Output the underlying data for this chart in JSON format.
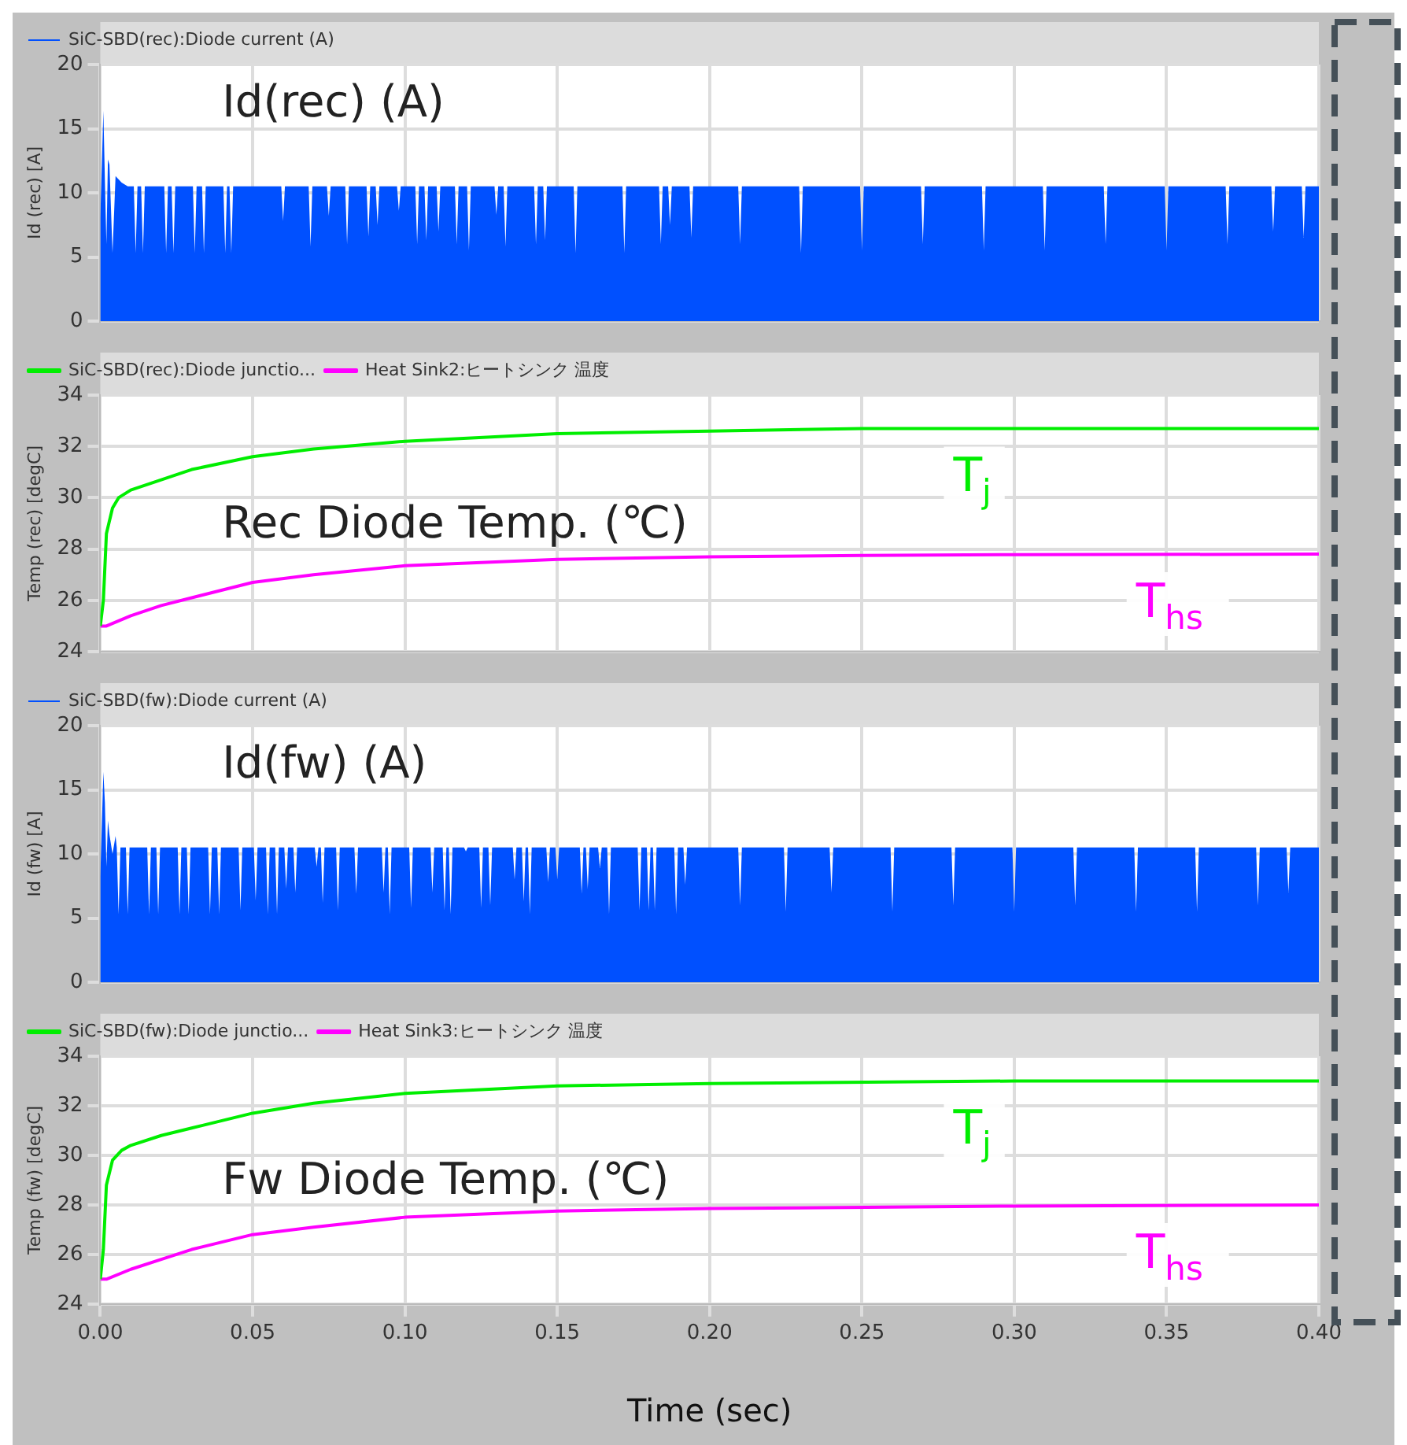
{
  "chart_data": [
    {
      "type": "area",
      "title": "Id(rec) (A)",
      "ylabel": "Id (rec) [A]",
      "legend": "top left",
      "grid": true,
      "tick_labels": "y",
      "xlim": [
        0,
        0.4
      ],
      "xticks": [
        0,
        0.05,
        0.1,
        0.15,
        0.2,
        0.25,
        0.3,
        0.35,
        0.4
      ],
      "ylim": [
        0,
        20
      ],
      "yticks": [
        0,
        5,
        10,
        15,
        20
      ],
      "series": [
        {
          "name": "SiC-SBD(rec):Diode current (A)",
          "color": "#0050ff",
          "x": [
            0,
            0.001,
            0.0015,
            0.002,
            0.0025,
            0.003,
            0.004,
            0.005,
            0.007,
            0.009,
            0.011,
            0.0116,
            0.0122,
            0.0134,
            0.014,
            0.0146,
            0.021,
            0.0216,
            0.0222,
            0.0234,
            0.024,
            0.0246,
            0.0304,
            0.031,
            0.0316,
            0.0334,
            0.034,
            0.0346,
            0.0404,
            0.041,
            0.0416,
            0.0424,
            0.043,
            0.0436,
            0.0594,
            0.06,
            0.0606,
            0.0684,
            0.069,
            0.0696,
            0.0744,
            0.075,
            0.0756,
            0.0804,
            0.081,
            0.0816,
            0.0874,
            0.088,
            0.0886,
            0.0904,
            0.091,
            0.0916,
            0.0974,
            0.098,
            0.0986,
            0.1034,
            0.104,
            0.1046,
            0.1064,
            0.107,
            0.1076,
            0.1104,
            0.111,
            0.1116,
            0.1164,
            0.117,
            0.1176,
            0.1204,
            0.121,
            0.1216,
            0.1294,
            0.13,
            0.1306,
            0.1324,
            0.133,
            0.1336,
            0.1424,
            0.143,
            0.1436,
            0.1454,
            0.146,
            0.1466,
            0.1554,
            0.156,
            0.1566,
            0.1714,
            0.172,
            0.1726,
            0.1834,
            0.184,
            0.1846,
            0.1864,
            0.187,
            0.1876,
            0.1934,
            0.194,
            0.1946,
            0.2094,
            0.21,
            0.2106,
            0.2294,
            0.23,
            0.2306,
            0.2494,
            0.25,
            0.2506,
            0.2694,
            0.27,
            0.2706,
            0.2894,
            0.29,
            0.2906,
            0.3094,
            0.31,
            0.3106,
            0.3294,
            0.33,
            0.3306,
            0.3494,
            0.35,
            0.3506,
            0.3694,
            0.37,
            0.3706,
            0.3844,
            0.385,
            0.3856,
            0.3944,
            0.395,
            0.3956,
            0.4
          ],
          "values": [
            8,
            16.4,
            11,
            6,
            12.6,
            12.2,
            5.3,
            11.3,
            10.8,
            10.5,
            10.5,
            5.3,
            10.5,
            10.5,
            5.3,
            10.5,
            10.5,
            5.3,
            10.5,
            10.5,
            5.3,
            10.5,
            10.5,
            5.3,
            10.5,
            10.5,
            5.3,
            10.5,
            10.5,
            5.3,
            10.5,
            10.5,
            5.3,
            10.5,
            10.5,
            7.8,
            10.5,
            10.5,
            5.8,
            10.5,
            10.5,
            8.2,
            10.5,
            10.5,
            6,
            10.5,
            10.5,
            6.6,
            10.5,
            10.5,
            7.5,
            10.5,
            10.5,
            8.6,
            10.5,
            10.5,
            6,
            10.5,
            10.5,
            6.3,
            10.5,
            10.5,
            7,
            10.5,
            10.5,
            6,
            10.5,
            10.5,
            5.5,
            10.5,
            10.5,
            8.3,
            10.5,
            10.5,
            5.8,
            10.5,
            10.5,
            6,
            10.5,
            10.5,
            6.3,
            10.5,
            10.5,
            5.3,
            10.5,
            10.5,
            5.3,
            10.5,
            10.5,
            6,
            10.5,
            10.5,
            7.5,
            10.5,
            10.5,
            6.5,
            10.5,
            10.5,
            6,
            10.5,
            10.5,
            5.3,
            10.5,
            10.5,
            5.5,
            10.5,
            10.5,
            6,
            10.5,
            10.5,
            5.5,
            10.5,
            10.5,
            5.5,
            10.5,
            10.5,
            6,
            10.5,
            10.5,
            5.5,
            10.5,
            10.5,
            6,
            10.5,
            10.5,
            7,
            10.5,
            10.5,
            6.5,
            10.5,
            10.5
          ]
        }
      ]
    },
    {
      "type": "line",
      "title": "Rec Diode Temp. (℃)",
      "ylabel": "Temp (rec) [degC]",
      "legend": "top left",
      "grid": true,
      "tick_labels": "y",
      "xlim": [
        0,
        0.4
      ],
      "xticks": [
        0,
        0.05,
        0.1,
        0.15,
        0.2,
        0.25,
        0.3,
        0.35,
        0.4
      ],
      "ylim": [
        24,
        34
      ],
      "yticks": [
        24,
        26,
        28,
        30,
        32,
        34
      ],
      "annotations": [
        "T$_{j}$",
        "T$_{hs}$"
      ],
      "series": [
        {
          "name": "SiC-SBD(rec):Diode junctio...",
          "color": "#00ee00",
          "x": [
            0,
            0.001,
            0.002,
            0.004,
            0.006,
            0.01,
            0.02,
            0.03,
            0.05,
            0.07,
            0.1,
            0.15,
            0.2,
            0.25,
            0.3,
            0.4
          ],
          "values": [
            25,
            26,
            28.6,
            29.6,
            30,
            30.3,
            30.7,
            31.1,
            31.6,
            31.9,
            32.2,
            32.5,
            32.6,
            32.7,
            32.7,
            32.7
          ]
        },
        {
          "name": "Heat Sink2:ヒートシンク 温度",
          "color": "#ff00ff",
          "x": [
            0,
            0.002,
            0.01,
            0.02,
            0.03,
            0.05,
            0.07,
            0.1,
            0.15,
            0.2,
            0.25,
            0.3,
            0.4
          ],
          "values": [
            25,
            25,
            25.4,
            25.8,
            26.1,
            26.7,
            27,
            27.35,
            27.6,
            27.7,
            27.75,
            27.78,
            27.8
          ]
        }
      ]
    },
    {
      "type": "area",
      "title": "Id(fw) (A)",
      "ylabel": "Id (fw) [A]",
      "legend": "top left",
      "grid": true,
      "tick_labels": "y",
      "xlim": [
        0,
        0.4
      ],
      "xticks": [
        0,
        0.05,
        0.1,
        0.15,
        0.2,
        0.25,
        0.3,
        0.35,
        0.4
      ],
      "ylim": [
        0,
        20
      ],
      "yticks": [
        0,
        5,
        10,
        15,
        20
      ],
      "series": [
        {
          "name": "SiC-SBD(fw):Diode current (A)",
          "color": "#0050ff",
          "x": [
            0,
            0.001,
            0.0015,
            0.002,
            0.0025,
            0.003,
            0.004,
            0.005,
            0.0054,
            0.006,
            0.0066,
            0.0084,
            0.009,
            0.0096,
            0.0154,
            0.016,
            0.0166,
            0.0184,
            0.019,
            0.0196,
            0.0254,
            0.026,
            0.0266,
            0.0284,
            0.029,
            0.0296,
            0.0354,
            0.036,
            0.0366,
            0.0384,
            0.039,
            0.0396,
            0.0454,
            0.046,
            0.0466,
            0.0504,
            0.051,
            0.0516,
            0.0544,
            0.055,
            0.0556,
            0.0574,
            0.058,
            0.0586,
            0.0604,
            0.061,
            0.0616,
            0.0634,
            0.064,
            0.0646,
            0.0704,
            0.071,
            0.0716,
            0.0724,
            0.073,
            0.0736,
            0.0774,
            0.078,
            0.0786,
            0.0834,
            0.084,
            0.0846,
            0.0924,
            0.093,
            0.0936,
            0.0944,
            0.095,
            0.0956,
            0.1014,
            0.102,
            0.1026,
            0.1084,
            0.109,
            0.1096,
            0.1124,
            0.113,
            0.1136,
            0.1144,
            0.115,
            0.1156,
            0.1194,
            0.12,
            0.1206,
            0.1244,
            0.125,
            0.1256,
            0.1274,
            0.128,
            0.1286,
            0.1354,
            0.136,
            0.1366,
            0.1384,
            0.139,
            0.1396,
            0.1404,
            0.141,
            0.1416,
            0.1464,
            0.147,
            0.1476,
            0.1494,
            0.15,
            0.1506,
            0.1574,
            0.158,
            0.1586,
            0.1594,
            0.16,
            0.1606,
            0.1634,
            0.164,
            0.1646,
            0.1664,
            0.167,
            0.1676,
            0.1764,
            0.177,
            0.1776,
            0.1794,
            0.18,
            0.1806,
            0.1814,
            0.182,
            0.1826,
            0.1884,
            0.189,
            0.1896,
            0.1914,
            0.192,
            0.1926,
            0.2094,
            0.21,
            0.2106,
            0.2244,
            0.225,
            0.2256,
            0.2394,
            0.24,
            0.2406,
            0.2594,
            0.26,
            0.2606,
            0.2794,
            0.28,
            0.2806,
            0.2994,
            0.3,
            0.3006,
            0.3194,
            0.32,
            0.3206,
            0.3394,
            0.34,
            0.3406,
            0.3594,
            0.36,
            0.3606,
            0.3794,
            0.38,
            0.3806,
            0.3894,
            0.39,
            0.3906,
            0.4
          ],
          "values": [
            8.2,
            16.4,
            14,
            9,
            12.6,
            11.5,
            10,
            11.4,
            10.5,
            5.3,
            10.5,
            10.5,
            5.3,
            10.5,
            10.5,
            5.3,
            10.5,
            10.5,
            5.3,
            10.5,
            10.5,
            5.3,
            10.5,
            10.5,
            5.3,
            10.5,
            10.5,
            5.3,
            10.5,
            10.5,
            5.3,
            10.5,
            10.5,
            5.6,
            10.5,
            10.5,
            6.4,
            10.5,
            10.5,
            5.3,
            10.5,
            10.5,
            5.3,
            10.5,
            10.5,
            7.3,
            10.5,
            10.5,
            7,
            10.5,
            10.5,
            9,
            10.5,
            10.5,
            6.2,
            10.5,
            10.5,
            5.6,
            10.5,
            10.5,
            6.9,
            10.5,
            10.5,
            7,
            10.5,
            10.5,
            5.3,
            10.5,
            10.5,
            5.8,
            10.5,
            10.5,
            7,
            10.5,
            10.5,
            5.6,
            10.5,
            10.5,
            5.3,
            10.5,
            10.5,
            10.2,
            10.5,
            10.5,
            5.8,
            10.5,
            10.5,
            6,
            10.5,
            10.5,
            8,
            10.5,
            10.5,
            6.3,
            10.5,
            10.5,
            5.3,
            10.5,
            10.5,
            7.8,
            10.5,
            10.5,
            8,
            10.5,
            10.5,
            6.9,
            10.5,
            10.5,
            7.3,
            10.5,
            10.5,
            8.9,
            10.5,
            10.5,
            5.3,
            10.5,
            10.5,
            5.6,
            10.5,
            10.5,
            5.6,
            10.5,
            10.5,
            5.6,
            10.5,
            10.5,
            5.3,
            10.5,
            10.5,
            7.6,
            10.5,
            10.5,
            6,
            10.5,
            10.5,
            5.5,
            10.5,
            10.5,
            7,
            10.5,
            10.5,
            5.5,
            10.5,
            10.5,
            6,
            10.5,
            10.5,
            5.5,
            10.5,
            10.5,
            6,
            10.5,
            10.5,
            5.5,
            10.5,
            10.5,
            5.5,
            10.5,
            10.5,
            6,
            10.5,
            10.5,
            7,
            10.5,
            10.5
          ]
        }
      ]
    },
    {
      "type": "line",
      "title": "Fw Diode Temp. (℃)",
      "ylabel": "Temp (fw) [degC]",
      "xlabel": "Time (sec)",
      "legend": "top left",
      "grid": true,
      "xlim": [
        0,
        0.4
      ],
      "xticks": [
        {
          "value": 0,
          "label": "0.00"
        },
        {
          "value": 0.05,
          "label": "0.05"
        },
        {
          "value": 0.1,
          "label": "0.10"
        },
        {
          "value": 0.15,
          "label": "0.15"
        },
        {
          "value": 0.2,
          "label": "0.20"
        },
        {
          "value": 0.25,
          "label": "0.25"
        },
        {
          "value": 0.3,
          "label": "0.30"
        },
        {
          "value": 0.35,
          "label": "0.35"
        },
        {
          "value": 0.4,
          "label": "0.40"
        }
      ],
      "ylim": [
        24,
        34
      ],
      "yticks": [
        24,
        26,
        28,
        30,
        32,
        34
      ],
      "annotations": [
        "T$_{j}$",
        "T$_{hs}$"
      ],
      "series": [
        {
          "name": "SiC-SBD(fw):Diode junctio...",
          "color": "#00ee00",
          "x": [
            0,
            0.001,
            0.002,
            0.004,
            0.007,
            0.01,
            0.02,
            0.03,
            0.05,
            0.07,
            0.1,
            0.15,
            0.2,
            0.3,
            0.4
          ],
          "values": [
            25,
            26.2,
            28.8,
            29.8,
            30.2,
            30.4,
            30.8,
            31.1,
            31.7,
            32.1,
            32.5,
            32.8,
            32.9,
            33,
            33
          ]
        },
        {
          "name": "Heat Sink3:ヒートシンク 温度",
          "color": "#ff00ff",
          "x": [
            0,
            0.002,
            0.01,
            0.02,
            0.03,
            0.05,
            0.07,
            0.1,
            0.15,
            0.2,
            0.3,
            0.4
          ],
          "values": [
            25,
            25,
            25.4,
            25.8,
            26.2,
            26.8,
            27.1,
            27.5,
            27.75,
            27.85,
            27.95,
            28
          ]
        }
      ]
    }
  ]
}
